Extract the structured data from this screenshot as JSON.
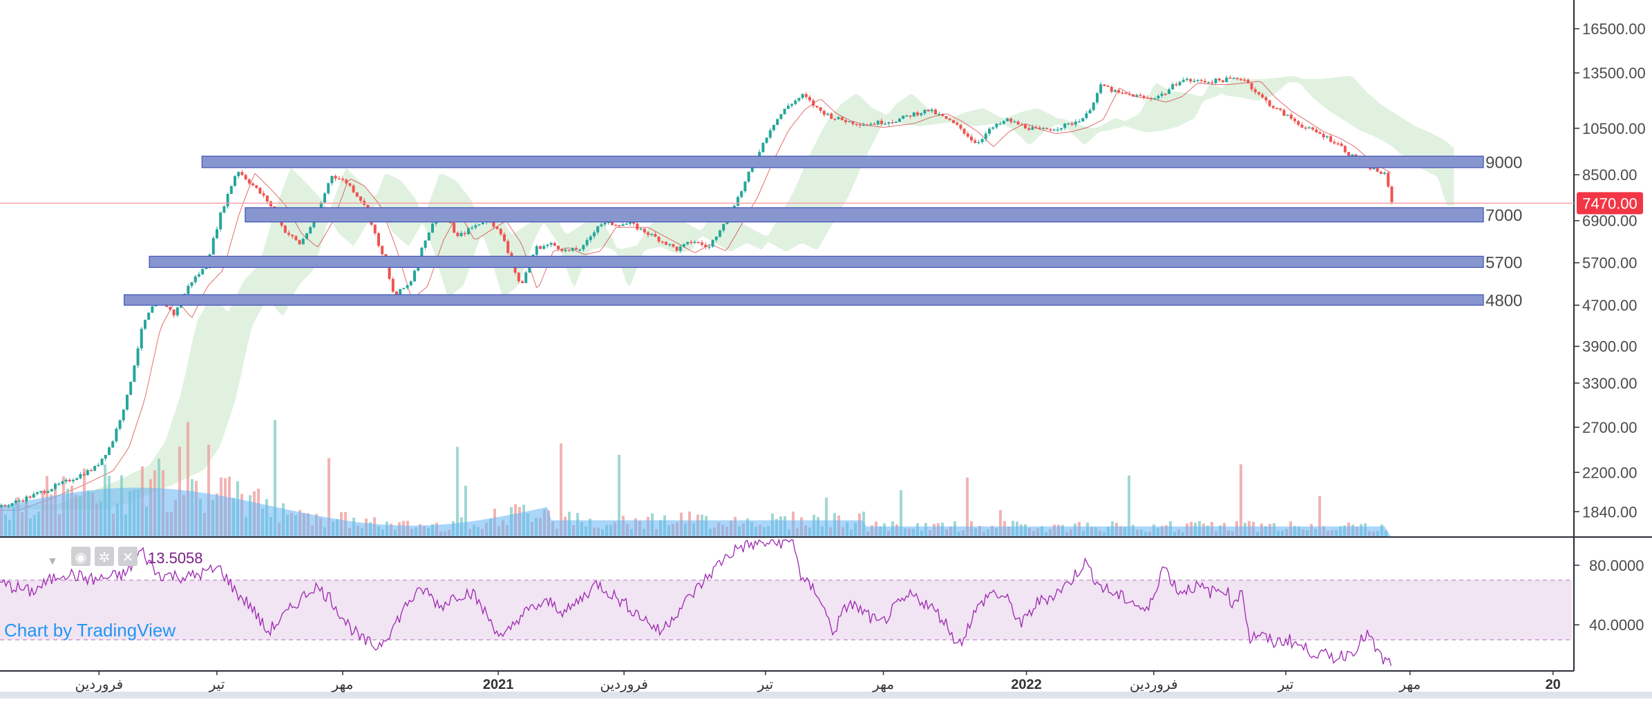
{
  "price_axis": {
    "ticks": [
      "16500.00",
      "13500.00",
      "10500.00",
      "8500.00",
      "6900.00",
      "5700.00",
      "4700.00",
      "3900.00",
      "3300.00",
      "2700.00",
      "2200.00",
      "1840.00"
    ],
    "tick_values": [
      16500,
      13500,
      10500,
      8500,
      6900,
      5700,
      4700,
      3900,
      3300,
      2700,
      2200,
      1840
    ],
    "scale": "log",
    "range": [
      1640,
      18800
    ]
  },
  "current_price": {
    "label": "7470.00",
    "value": 7470,
    "color": "#f23645"
  },
  "zones": [
    {
      "label": "9000",
      "low": 8780,
      "high": 9250,
      "start": 0.1285
    },
    {
      "label": "7000",
      "low": 6860,
      "high": 7320,
      "start": 0.156
    },
    {
      "label": "5700",
      "low": 5580,
      "high": 5870,
      "start": 0.095
    },
    {
      "label": "4800",
      "low": 4700,
      "high": 4930,
      "start": 0.079
    }
  ],
  "time_axis": {
    "labels": [
      "فروردین",
      "تیر",
      "مهر",
      "2021",
      "فروردین",
      "تیر",
      "مهر",
      "2022",
      "فروردین",
      "تیر",
      "مهر",
      "20"
    ],
    "bold": [
      false,
      false,
      false,
      true,
      false,
      false,
      false,
      true,
      false,
      false,
      false,
      true
    ]
  },
  "rsi": {
    "value_label": "13.5058",
    "ticks": [
      "80.0000",
      "40.0000"
    ],
    "tick_values": [
      80,
      40
    ],
    "range": [
      10,
      98
    ],
    "band": [
      30,
      70
    ],
    "color": "#9c27b0"
  },
  "watermark": "Chart by TradingView",
  "colors": {
    "up": "#26a69a",
    "down": "#ef5350",
    "zone_fill": "#8796cf",
    "zone_stroke": "#3f51b5",
    "cloud_up": "#a5d6a7",
    "cloud_down": "#ffcdd2",
    "volume": "#64b5f6"
  },
  "chart_data": {
    "type": "candlestick",
    "yscale": "log",
    "ylim": [
      1640,
      18800
    ],
    "last_close": 7470,
    "price_path": [
      {
        "x": 0.0,
        "y": 1880
      },
      {
        "x": 0.02,
        "y": 1980
      },
      {
        "x": 0.04,
        "y": 2100
      },
      {
        "x": 0.06,
        "y": 2250
      },
      {
        "x": 0.07,
        "y": 2500
      },
      {
        "x": 0.08,
        "y": 3100
      },
      {
        "x": 0.09,
        "y": 4300
      },
      {
        "x": 0.1,
        "y": 4900
      },
      {
        "x": 0.11,
        "y": 4500
      },
      {
        "x": 0.12,
        "y": 5200
      },
      {
        "x": 0.13,
        "y": 5600
      },
      {
        "x": 0.14,
        "y": 7200
      },
      {
        "x": 0.15,
        "y": 8700
      },
      {
        "x": 0.16,
        "y": 8100
      },
      {
        "x": 0.17,
        "y": 7500
      },
      {
        "x": 0.18,
        "y": 6600
      },
      {
        "x": 0.19,
        "y": 6200
      },
      {
        "x": 0.2,
        "y": 7000
      },
      {
        "x": 0.21,
        "y": 8500
      },
      {
        "x": 0.22,
        "y": 8200
      },
      {
        "x": 0.23,
        "y": 7500
      },
      {
        "x": 0.24,
        "y": 6200
      },
      {
        "x": 0.25,
        "y": 4900
      },
      {
        "x": 0.26,
        "y": 5200
      },
      {
        "x": 0.27,
        "y": 6400
      },
      {
        "x": 0.28,
        "y": 7300
      },
      {
        "x": 0.29,
        "y": 6400
      },
      {
        "x": 0.3,
        "y": 6700
      },
      {
        "x": 0.31,
        "y": 7000
      },
      {
        "x": 0.32,
        "y": 6300
      },
      {
        "x": 0.33,
        "y": 5100
      },
      {
        "x": 0.34,
        "y": 6100
      },
      {
        "x": 0.35,
        "y": 6200
      },
      {
        "x": 0.36,
        "y": 6000
      },
      {
        "x": 0.37,
        "y": 6100
      },
      {
        "x": 0.38,
        "y": 6800
      },
      {
        "x": 0.4,
        "y": 6800
      },
      {
        "x": 0.42,
        "y": 6300
      },
      {
        "x": 0.43,
        "y": 6050
      },
      {
        "x": 0.44,
        "y": 6300
      },
      {
        "x": 0.45,
        "y": 6100
      },
      {
        "x": 0.46,
        "y": 6900
      },
      {
        "x": 0.47,
        "y": 7800
      },
      {
        "x": 0.48,
        "y": 9200
      },
      {
        "x": 0.49,
        "y": 10600
      },
      {
        "x": 0.5,
        "y": 11600
      },
      {
        "x": 0.51,
        "y": 12200
      },
      {
        "x": 0.52,
        "y": 11400
      },
      {
        "x": 0.53,
        "y": 11000
      },
      {
        "x": 0.54,
        "y": 10800
      },
      {
        "x": 0.55,
        "y": 10700
      },
      {
        "x": 0.57,
        "y": 10900
      },
      {
        "x": 0.58,
        "y": 11200
      },
      {
        "x": 0.59,
        "y": 11400
      },
      {
        "x": 0.6,
        "y": 11000
      },
      {
        "x": 0.61,
        "y": 10500
      },
      {
        "x": 0.62,
        "y": 9800
      },
      {
        "x": 0.63,
        "y": 10500
      },
      {
        "x": 0.64,
        "y": 10900
      },
      {
        "x": 0.65,
        "y": 10600
      },
      {
        "x": 0.66,
        "y": 10400
      },
      {
        "x": 0.67,
        "y": 10500
      },
      {
        "x": 0.68,
        "y": 10700
      },
      {
        "x": 0.69,
        "y": 11100
      },
      {
        "x": 0.7,
        "y": 12800
      },
      {
        "x": 0.71,
        "y": 12300
      },
      {
        "x": 0.72,
        "y": 12200
      },
      {
        "x": 0.73,
        "y": 12000
      },
      {
        "x": 0.74,
        "y": 12300
      },
      {
        "x": 0.75,
        "y": 13100
      },
      {
        "x": 0.76,
        "y": 13000
      },
      {
        "x": 0.77,
        "y": 13000
      },
      {
        "x": 0.78,
        "y": 13100
      },
      {
        "x": 0.79,
        "y": 13200
      },
      {
        "x": 0.8,
        "y": 12200
      },
      {
        "x": 0.81,
        "y": 11500
      },
      {
        "x": 0.82,
        "y": 11000
      },
      {
        "x": 0.83,
        "y": 10500
      },
      {
        "x": 0.84,
        "y": 10200
      },
      {
        "x": 0.85,
        "y": 9800
      },
      {
        "x": 0.86,
        "y": 9200
      },
      {
        "x": 0.87,
        "y": 8800
      },
      {
        "x": 0.88,
        "y": 8500
      },
      {
        "x": 0.885,
        "y": 7470
      }
    ],
    "rsi_path": [
      {
        "x": 0.0,
        "y": 68
      },
      {
        "x": 0.02,
        "y": 62
      },
      {
        "x": 0.04,
        "y": 75
      },
      {
        "x": 0.06,
        "y": 70
      },
      {
        "x": 0.08,
        "y": 74
      },
      {
        "x": 0.09,
        "y": 90
      },
      {
        "x": 0.1,
        "y": 74
      },
      {
        "x": 0.12,
        "y": 72
      },
      {
        "x": 0.14,
        "y": 78
      },
      {
        "x": 0.15,
        "y": 62
      },
      {
        "x": 0.16,
        "y": 52
      },
      {
        "x": 0.17,
        "y": 35
      },
      {
        "x": 0.18,
        "y": 45
      },
      {
        "x": 0.19,
        "y": 56
      },
      {
        "x": 0.2,
        "y": 66
      },
      {
        "x": 0.21,
        "y": 58
      },
      {
        "x": 0.22,
        "y": 42
      },
      {
        "x": 0.23,
        "y": 30
      },
      {
        "x": 0.24,
        "y": 25
      },
      {
        "x": 0.25,
        "y": 38
      },
      {
        "x": 0.26,
        "y": 56
      },
      {
        "x": 0.27,
        "y": 64
      },
      {
        "x": 0.28,
        "y": 52
      },
      {
        "x": 0.29,
        "y": 60
      },
      {
        "x": 0.3,
        "y": 62
      },
      {
        "x": 0.31,
        "y": 46
      },
      {
        "x": 0.32,
        "y": 30
      },
      {
        "x": 0.33,
        "y": 45
      },
      {
        "x": 0.34,
        "y": 52
      },
      {
        "x": 0.35,
        "y": 55
      },
      {
        "x": 0.36,
        "y": 48
      },
      {
        "x": 0.37,
        "y": 58
      },
      {
        "x": 0.38,
        "y": 68
      },
      {
        "x": 0.39,
        "y": 60
      },
      {
        "x": 0.4,
        "y": 52
      },
      {
        "x": 0.41,
        "y": 44
      },
      {
        "x": 0.42,
        "y": 35
      },
      {
        "x": 0.43,
        "y": 48
      },
      {
        "x": 0.44,
        "y": 60
      },
      {
        "x": 0.45,
        "y": 72
      },
      {
        "x": 0.46,
        "y": 84
      },
      {
        "x": 0.47,
        "y": 92
      },
      {
        "x": 0.48,
        "y": 94
      },
      {
        "x": 0.49,
        "y": 95
      },
      {
        "x": 0.505,
        "y": 96
      },
      {
        "x": 0.51,
        "y": 70
      },
      {
        "x": 0.52,
        "y": 62
      },
      {
        "x": 0.53,
        "y": 35
      },
      {
        "x": 0.54,
        "y": 55
      },
      {
        "x": 0.55,
        "y": 48
      },
      {
        "x": 0.56,
        "y": 40
      },
      {
        "x": 0.57,
        "y": 52
      },
      {
        "x": 0.58,
        "y": 60
      },
      {
        "x": 0.59,
        "y": 54
      },
      {
        "x": 0.6,
        "y": 44
      },
      {
        "x": 0.61,
        "y": 26
      },
      {
        "x": 0.62,
        "y": 48
      },
      {
        "x": 0.63,
        "y": 62
      },
      {
        "x": 0.64,
        "y": 58
      },
      {
        "x": 0.65,
        "y": 40
      },
      {
        "x": 0.66,
        "y": 55
      },
      {
        "x": 0.67,
        "y": 60
      },
      {
        "x": 0.68,
        "y": 68
      },
      {
        "x": 0.69,
        "y": 82
      },
      {
        "x": 0.7,
        "y": 66
      },
      {
        "x": 0.71,
        "y": 60
      },
      {
        "x": 0.72,
        "y": 56
      },
      {
        "x": 0.73,
        "y": 48
      },
      {
        "x": 0.74,
        "y": 80
      },
      {
        "x": 0.75,
        "y": 62
      },
      {
        "x": 0.76,
        "y": 66
      },
      {
        "x": 0.77,
        "y": 62
      },
      {
        "x": 0.78,
        "y": 64
      },
      {
        "x": 0.785,
        "y": 52
      },
      {
        "x": 0.79,
        "y": 66
      },
      {
        "x": 0.795,
        "y": 30
      },
      {
        "x": 0.8,
        "y": 34
      },
      {
        "x": 0.81,
        "y": 28
      },
      {
        "x": 0.82,
        "y": 30
      },
      {
        "x": 0.83,
        "y": 24
      },
      {
        "x": 0.84,
        "y": 20
      },
      {
        "x": 0.85,
        "y": 18
      },
      {
        "x": 0.86,
        "y": 22
      },
      {
        "x": 0.87,
        "y": 34
      },
      {
        "x": 0.875,
        "y": 24
      },
      {
        "x": 0.88,
        "y": 16
      },
      {
        "x": 0.885,
        "y": 14
      }
    ]
  }
}
